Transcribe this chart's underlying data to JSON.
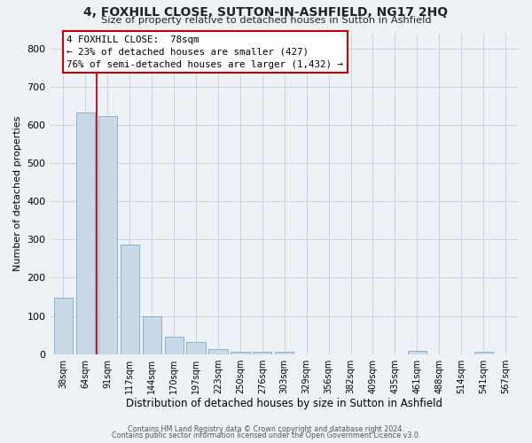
{
  "title": "4, FOXHILL CLOSE, SUTTON-IN-ASHFIELD, NG17 2HQ",
  "subtitle": "Size of property relative to detached houses in Sutton in Ashfield",
  "xlabel": "Distribution of detached houses by size in Sutton in Ashfield",
  "ylabel": "Number of detached properties",
  "bar_color": "#c9d9e8",
  "bar_edge_color": "#7aaac8",
  "grid_color": "#c8d4e0",
  "background_color": "#eef2f7",
  "annotation_box_color": "#ffffff",
  "annotation_border_color": "#cc0000",
  "vline_color": "#cc0000",
  "categories": [
    "38sqm",
    "64sqm",
    "91sqm",
    "117sqm",
    "144sqm",
    "170sqm",
    "197sqm",
    "223sqm",
    "250sqm",
    "276sqm",
    "303sqm",
    "329sqm",
    "356sqm",
    "382sqm",
    "409sqm",
    "435sqm",
    "461sqm",
    "488sqm",
    "514sqm",
    "541sqm",
    "567sqm"
  ],
  "values": [
    148,
    632,
    624,
    287,
    100,
    46,
    31,
    13,
    6,
    7,
    6,
    0,
    0,
    0,
    0,
    0,
    8,
    0,
    0,
    7,
    0
  ],
  "ylim": [
    0,
    840
  ],
  "yticks": [
    0,
    100,
    200,
    300,
    400,
    500,
    600,
    700,
    800
  ],
  "property_label": "4 FOXHILL CLOSE:  78sqm",
  "annotation_line1": "← 23% of detached houses are smaller (427)",
  "annotation_line2": "76% of semi-detached houses are larger (1,432) →",
  "vline_position": 1.5,
  "footer1": "Contains HM Land Registry data © Crown copyright and database right 2024.",
  "footer2": "Contains public sector information licensed under the Open Government Licence v3.0."
}
